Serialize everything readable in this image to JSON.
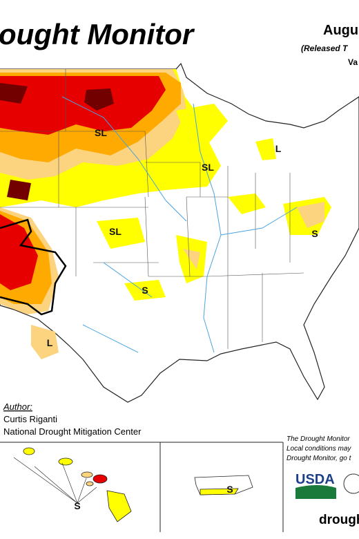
{
  "header": {
    "title": "ought Monitor",
    "date": "Augu",
    "released": "(Released T",
    "valid": "Va"
  },
  "map_labels": [
    "SL",
    "L",
    "SL",
    "S",
    "SL",
    "S",
    "L",
    "S",
    "S"
  ],
  "author": {
    "label": "Author:",
    "name": "Curtis Riganti",
    "org": "National Drought Mitigation Center"
  },
  "note": {
    "lines": [
      "The Drought Monitor",
      "Local conditions may",
      "Drought Monitor, go t"
    ]
  },
  "logo": {
    "text": "USDA"
  },
  "footer": {
    "url": "drough"
  }
}
